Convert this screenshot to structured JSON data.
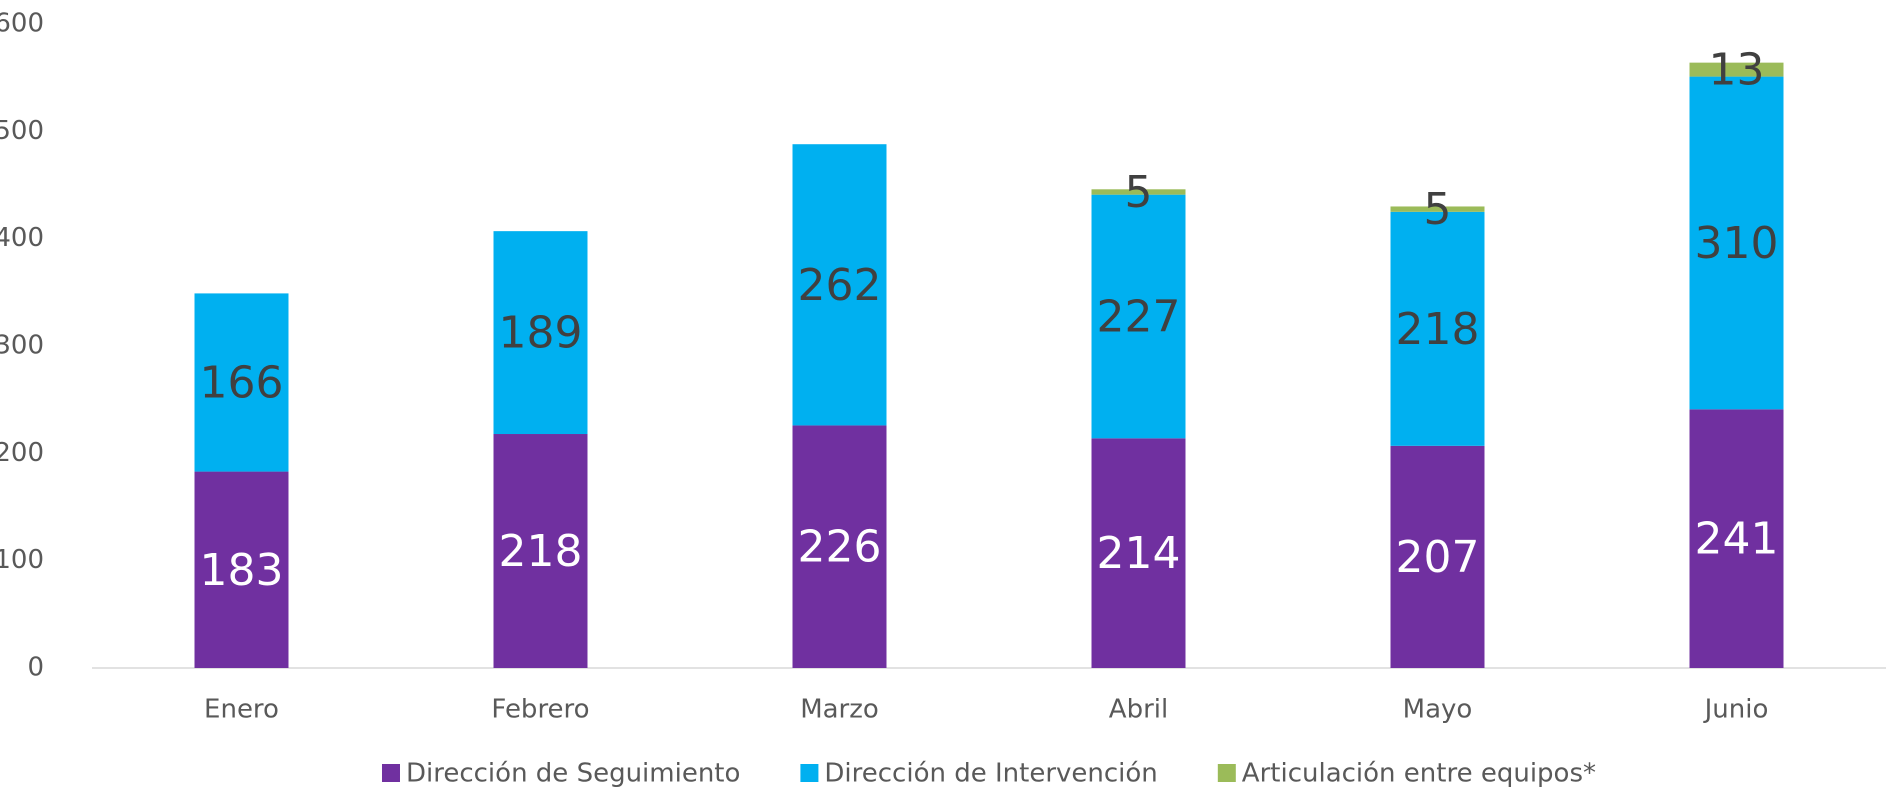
{
  "chart_data": {
    "type": "stacked_bar",
    "categories": [
      "Enero",
      "Febrero",
      "Marzo",
      "Abril",
      "Mayo",
      "Junio"
    ],
    "series": [
      {
        "name": "Dirección de Seguimiento",
        "color": "#7030a0",
        "label_color": "#ffffff",
        "values": [
          183,
          218,
          226,
          214,
          207,
          241
        ]
      },
      {
        "name": "Dirección de Intervención",
        "color": "#00b0f0",
        "label_color": "#404040",
        "values": [
          166,
          189,
          262,
          227,
          218,
          310
        ]
      },
      {
        "name": "Articulación entre equipos*",
        "color": "#9bbb59",
        "label_color": "#404040",
        "values": [
          null,
          null,
          null,
          5,
          5,
          13
        ]
      }
    ],
    "ylim": [
      0,
      600
    ],
    "yticks": [
      0,
      100,
      200,
      300,
      400,
      500,
      600
    ],
    "grid": false,
    "legend": "bottom"
  }
}
